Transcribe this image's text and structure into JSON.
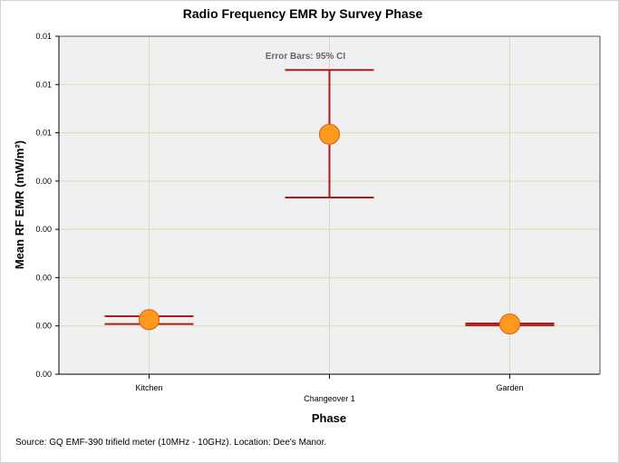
{
  "chart_data": {
    "type": "scatter",
    "title": "Radio Frequency EMR by Survey Phase",
    "xlabel": "Phase",
    "ylabel": "Mean RF EMR (mW/m²)",
    "annotation": "Error Bars: 95% CI",
    "categories": [
      "Kitchen",
      "Changeover 1",
      "Garden"
    ],
    "ylim": [
      0,
      0.007
    ],
    "y_tick_values": [
      0,
      0.001,
      0.002,
      0.003,
      0.004,
      0.005,
      0.006,
      0.007
    ],
    "y_tick_labels": [
      "0.00",
      "0.00",
      "0.00",
      "0.00",
      "0.00",
      "0.01",
      "0.01",
      "0.01"
    ],
    "series": [
      {
        "values": [
          0.00113,
          0.00497,
          0.00104
        ],
        "ci_low": [
          0.00104,
          0.00366,
          0.00101
        ],
        "ci_high": [
          0.0012,
          0.0063,
          0.00105
        ]
      }
    ],
    "grid": true,
    "marker_color": "#ff9a1f",
    "marker_edge_color": "#e3661d",
    "error_bar_color": "#a91d1d",
    "plot_background": "#f0f0f0",
    "grid_color": "#d7ddb8"
  },
  "footer": {
    "source": "Source: GQ EMF-390 trifield meter (10MHz - 10GHz). Location: Dee's Manor."
  }
}
